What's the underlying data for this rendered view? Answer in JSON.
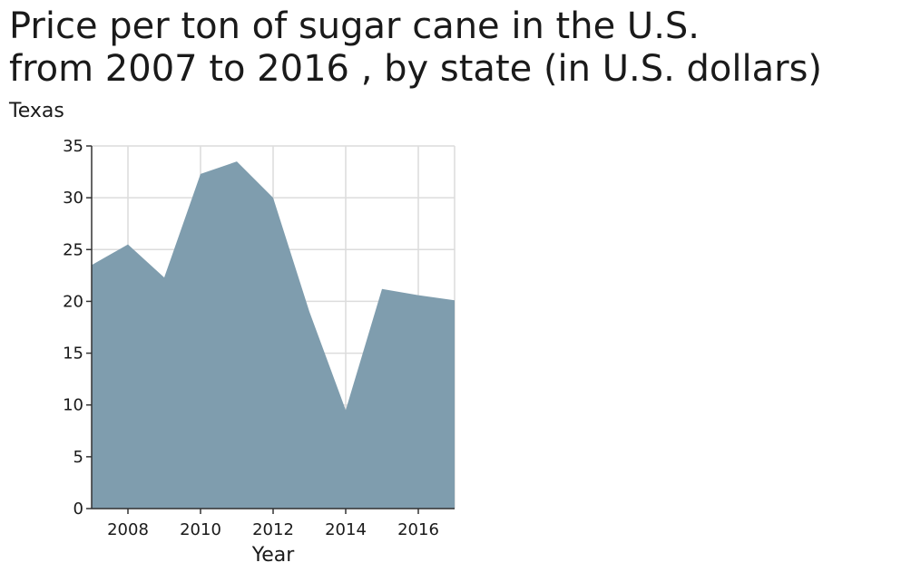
{
  "chart_data": {
    "type": "area",
    "title_lines": [
      "Price per ton of sugar cane in the U.S.",
      "from 2007 to 2016 , by state (in U.S. dollars)"
    ],
    "ylabel": "Texas",
    "xlabel": "Year",
    "x": [
      2007,
      2008,
      2009,
      2010,
      2011,
      2012,
      2013,
      2014,
      2015,
      2016,
      2017
    ],
    "series": [
      {
        "values": [
          23.5,
          25.5,
          22.3,
          32.3,
          33.5,
          30.0,
          19.0,
          9.5,
          21.2,
          20.6,
          20.1
        ],
        "color": "#7f9dae"
      }
    ],
    "xlim": [
      2007,
      2017
    ],
    "ylim": [
      0,
      35
    ],
    "xticks": [
      2008,
      2010,
      2012,
      2014,
      2016
    ],
    "yticks": [
      0,
      5,
      10,
      15,
      20,
      25,
      30,
      35
    ],
    "grid": true
  }
}
